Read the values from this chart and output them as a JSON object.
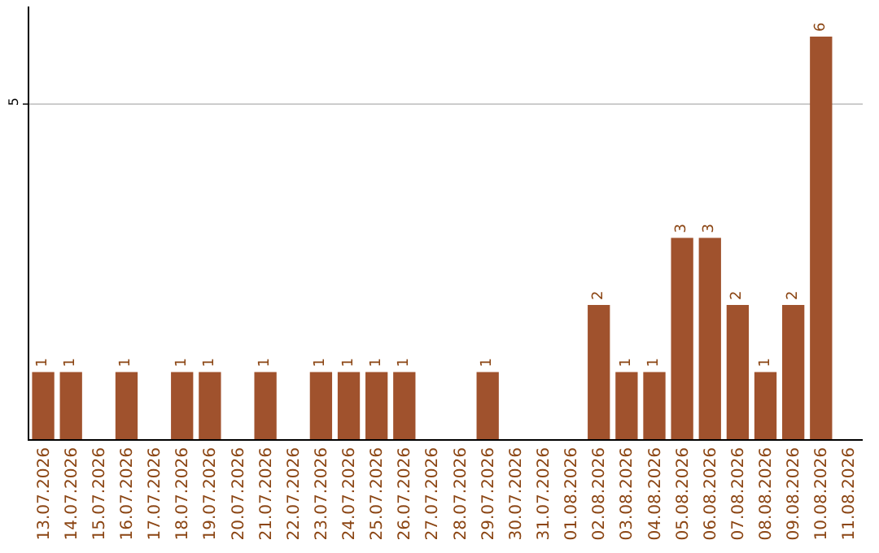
{
  "chart_data": {
    "type": "bar",
    "categories": [
      "13.07.2026",
      "14.07.2026",
      "15.07.2026",
      "16.07.2026",
      "17.07.2026",
      "18.07.2026",
      "19.07.2026",
      "20.07.2026",
      "21.07.2026",
      "22.07.2026",
      "23.07.2026",
      "24.07.2026",
      "25.07.2026",
      "26.07.2026",
      "27.07.2026",
      "28.07.2026",
      "29.07.2026",
      "30.07.2026",
      "31.07.2026",
      "01.08.2026",
      "02.08.2026",
      "03.08.2026",
      "04.08.2026",
      "05.08.2026",
      "06.08.2026",
      "07.08.2026",
      "08.08.2026",
      "09.08.2026",
      "10.08.2026",
      "11.08.2026"
    ],
    "values": [
      1,
      1,
      0,
      1,
      0,
      1,
      1,
      0,
      1,
      0,
      1,
      1,
      1,
      1,
      0,
      0,
      1,
      0,
      0,
      0,
      2,
      1,
      1,
      3,
      3,
      2,
      1,
      2,
      6,
      0
    ],
    "value_labels": [
      "1",
      "1",
      null,
      "1",
      null,
      "1",
      "1",
      null,
      "1",
      null,
      "1",
      "1",
      "1",
      "1",
      null,
      null,
      "1",
      null,
      null,
      null,
      "2",
      "1",
      "1",
      "3",
      "3",
      "2",
      "1",
      "2",
      "6",
      null
    ],
    "color": "#a0522d",
    "ylim": [
      0,
      6.45
    ],
    "yticks": [
      5
    ],
    "grid": "y",
    "legend": false
  }
}
